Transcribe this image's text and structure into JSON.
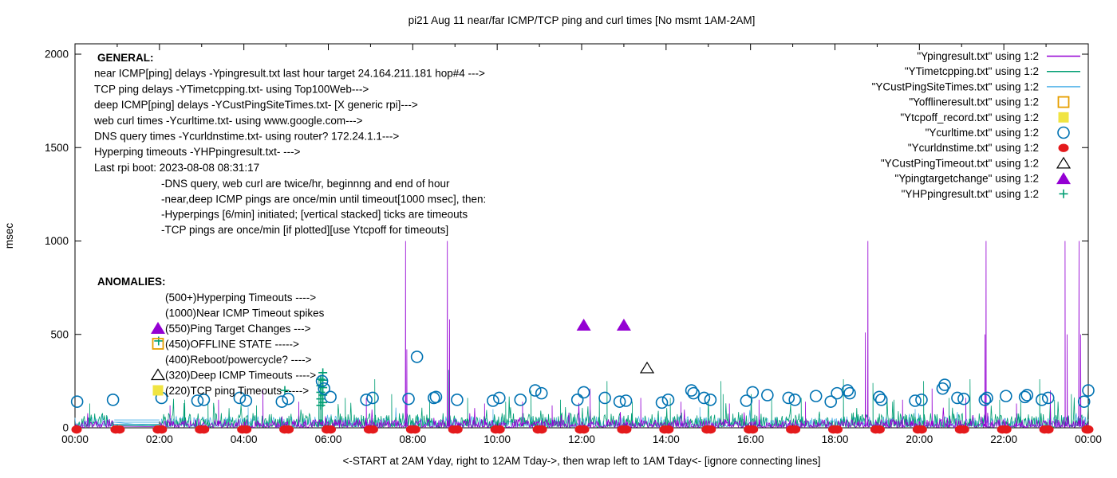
{
  "page": {
    "title": "pi21 Aug 11  near/far ICMP/TCP ping and curl times [No msmt 1AM-2AM]"
  },
  "chart_data": {
    "type": "line+scatter",
    "title": "pi21 Aug 11  near/far ICMP/TCP ping and curl times [No msmt 1AM-2AM]",
    "xlabel": "<-START at 2AM Yday, right to 12AM Tday->, then wrap left to 1AM Tday<- [ignore connecting lines]",
    "ylabel": "msec",
    "ylim": [
      0,
      2000
    ],
    "yticks": [
      0,
      500,
      1000,
      1500,
      2000
    ],
    "x_hours_range": [
      0,
      24
    ],
    "xtick_labels": [
      "00:00",
      "02:00",
      "04:00",
      "06:00",
      "08:00",
      "10:00",
      "12:00",
      "14:00",
      "16:00",
      "18:00",
      "20:00",
      "22:00",
      "00:00"
    ],
    "measurement_gap_hours": [
      0.93,
      2.0
    ],
    "grid": false,
    "legend_position": "top-right-inside",
    "legend": [
      {
        "label": "\"Ypingresult.txt\" using 1:2",
        "sample": "line",
        "color": "#9400d3"
      },
      {
        "label": "\"YTimetcpping.txt\" using 1:2",
        "sample": "line",
        "color": "#009e73"
      },
      {
        "label": "\"YCustPingSiteTimes.txt\" using 1:2",
        "sample": "line",
        "color": "#56b4e9"
      },
      {
        "label": "\"Yofflineresult.txt\" using 1:2",
        "sample": "open-square",
        "color": "#e69f00"
      },
      {
        "label": "\"Ytcpoff_record.txt\" using 1:2",
        "sample": "filled-square",
        "color": "#f0e442"
      },
      {
        "label": "\"Ycurltime.txt\" using 1:2",
        "sample": "open-circle",
        "color": "#0072b2"
      },
      {
        "label": "\"Ycurldnstime.txt\" using 1:2",
        "sample": "filled-circle",
        "color": "#e41a1c"
      },
      {
        "label": "\"YCustPingTimeout.txt\" using 1:2",
        "sample": "open-triangle",
        "color": "#000000"
      },
      {
        "label": "\"Ypingtargetchange\" using 1:2",
        "sample": "filled-triangle",
        "color": "#9400d3"
      },
      {
        "label": "\"YHPpingresult.txt\" using 1:2",
        "sample": "plus",
        "color": "#009e73"
      }
    ],
    "series": {
      "near_icmp_ping": {
        "source": "Ypingresult.txt",
        "color": "#9400d3",
        "style": "noisy line with timeout impulses",
        "timeout_msec": 1000,
        "noise": {
          "base": 2,
          "amp": 45,
          "spike_p": 0.03,
          "spike_amp": 100,
          "seed": 101
        },
        "spikes": [
          [
            2.25,
            120
          ],
          [
            3.4,
            150
          ],
          [
            4.45,
            200
          ],
          [
            5.3,
            140
          ],
          [
            6.9,
            160
          ],
          [
            7.83,
            1000
          ],
          [
            7.86,
            420
          ],
          [
            8.82,
            1000
          ],
          [
            8.87,
            580
          ],
          [
            9.7,
            130
          ],
          [
            10.6,
            140
          ],
          [
            11.3,
            120
          ],
          [
            12.2,
            210
          ],
          [
            13.4,
            160
          ],
          [
            14.35,
            140
          ],
          [
            15.5,
            130
          ],
          [
            16.2,
            150
          ],
          [
            17.3,
            140
          ],
          [
            18.72,
            510
          ],
          [
            18.78,
            1000
          ],
          [
            19.6,
            150
          ],
          [
            20.3,
            210
          ],
          [
            21.1,
            160
          ],
          [
            21.55,
            500
          ],
          [
            21.58,
            1000
          ],
          [
            22.3,
            130
          ],
          [
            23.1,
            200
          ],
          [
            23.45,
            1000
          ],
          [
            23.5,
            500
          ],
          [
            23.78,
            1000
          ],
          [
            23.82,
            500
          ]
        ]
      },
      "tcp_ping": {
        "source": "YTimetcpping.txt",
        "color": "#009e73",
        "style": "noisy line",
        "noise": {
          "base": 4,
          "amp": 75,
          "spike_p": 0.05,
          "spike_amp": 110,
          "seed": 202
        },
        "spikes": [
          [
            0.35,
            130
          ],
          [
            2.6,
            150
          ],
          [
            3.15,
            140
          ],
          [
            4.3,
            120
          ],
          [
            5.78,
            280
          ],
          [
            5.82,
            240
          ],
          [
            5.86,
            300
          ],
          [
            6.4,
            160
          ],
          [
            7.1,
            260
          ],
          [
            7.5,
            180
          ],
          [
            8.4,
            150
          ],
          [
            8.85,
            310
          ],
          [
            9.3,
            160
          ],
          [
            10.2,
            140
          ],
          [
            10.8,
            200
          ],
          [
            11.5,
            150
          ],
          [
            12.42,
            170
          ],
          [
            12.6,
            250
          ],
          [
            13.2,
            140
          ],
          [
            14.1,
            160
          ],
          [
            15.3,
            250
          ],
          [
            15.35,
            180
          ],
          [
            16.5,
            150
          ],
          [
            17.2,
            160
          ],
          [
            18.2,
            260
          ],
          [
            18.9,
            240
          ],
          [
            19.4,
            150
          ],
          [
            20.1,
            250
          ],
          [
            20.7,
            160
          ],
          [
            21.2,
            260
          ],
          [
            21.9,
            150
          ],
          [
            22.4,
            140
          ],
          [
            22.85,
            260
          ],
          [
            23.2,
            150
          ],
          [
            23.6,
            180
          ]
        ]
      },
      "deep_icmp_ping": {
        "source": "YCustPingSiteTimes.txt",
        "color": "#56b4e9",
        "style": "noisy line",
        "noise": {
          "base": 6,
          "amp": 55,
          "spike_p": 0.02,
          "spike_amp": 60,
          "seed": 303
        },
        "spikes": [
          [
            4.1,
            110
          ],
          [
            9.9,
            100
          ],
          [
            14.8,
            110
          ],
          [
            19.9,
            100
          ]
        ]
      },
      "web_curl": {
        "source": "Ycurltime.txt",
        "color": "#0072b2",
        "marker": "open-circle",
        "points": [
          [
            0.05,
            140
          ],
          [
            0.9,
            150
          ],
          [
            2.05,
            160
          ],
          [
            2.9,
            145
          ],
          [
            3.05,
            150
          ],
          [
            3.9,
            160
          ],
          [
            4.05,
            145
          ],
          [
            4.9,
            140
          ],
          [
            5.05,
            155
          ],
          [
            5.85,
            250
          ],
          [
            5.9,
            210
          ],
          [
            6.05,
            165
          ],
          [
            6.9,
            150
          ],
          [
            7.05,
            160
          ],
          [
            7.9,
            155
          ],
          [
            8.1,
            380
          ],
          [
            8.5,
            160
          ],
          [
            8.55,
            165
          ],
          [
            9.05,
            150
          ],
          [
            9.9,
            145
          ],
          [
            10.05,
            160
          ],
          [
            10.55,
            150
          ],
          [
            10.9,
            200
          ],
          [
            11.05,
            185
          ],
          [
            11.9,
            150
          ],
          [
            12.05,
            190
          ],
          [
            12.55,
            160
          ],
          [
            12.9,
            140
          ],
          [
            13.05,
            145
          ],
          [
            13.9,
            135
          ],
          [
            14.05,
            150
          ],
          [
            14.6,
            200
          ],
          [
            14.65,
            185
          ],
          [
            14.9,
            160
          ],
          [
            15.05,
            150
          ],
          [
            15.9,
            145
          ],
          [
            16.05,
            190
          ],
          [
            16.4,
            175
          ],
          [
            16.9,
            160
          ],
          [
            17.05,
            150
          ],
          [
            17.55,
            170
          ],
          [
            17.9,
            140
          ],
          [
            18.05,
            185
          ],
          [
            18.3,
            200
          ],
          [
            18.35,
            185
          ],
          [
            19.05,
            165
          ],
          [
            19.1,
            150
          ],
          [
            19.9,
            145
          ],
          [
            20.05,
            150
          ],
          [
            20.55,
            210
          ],
          [
            20.6,
            230
          ],
          [
            20.9,
            160
          ],
          [
            21.05,
            155
          ],
          [
            21.55,
            150
          ],
          [
            21.6,
            160
          ],
          [
            22.05,
            170
          ],
          [
            22.5,
            165
          ],
          [
            22.55,
            175
          ],
          [
            22.9,
            150
          ],
          [
            23.05,
            160
          ],
          [
            23.9,
            140
          ],
          [
            24.0,
            200
          ]
        ]
      },
      "dns_query": {
        "source": "Ycurldnstime.txt",
        "color": "#e41a1c",
        "marker": "filled-circle",
        "cadence": "every hour 00:00-24:00",
        "typical_msec": 8
      },
      "deep_icmp_timeout": {
        "source": "YCustPingTimeout.txt",
        "color": "#000000",
        "marker": "open-triangle",
        "points": [
          [
            13.55,
            320
          ]
        ]
      },
      "ping_target_change": {
        "source": "Ypingtargetchange",
        "color": "#9400d3",
        "marker": "filled-triangle",
        "points": [
          [
            12.05,
            550
          ],
          [
            13.0,
            550
          ]
        ]
      },
      "hyperping": {
        "source": "YHPpingresult.txt",
        "color": "#009e73",
        "marker": "plus",
        "points": [
          [
            1.98,
            465
          ],
          [
            4.97,
            200
          ],
          [
            5.82,
            120
          ],
          [
            5.82,
            155
          ],
          [
            5.82,
            190
          ],
          [
            5.82,
            225
          ],
          [
            5.82,
            260
          ],
          [
            5.87,
            135
          ],
          [
            5.87,
            175
          ],
          [
            5.87,
            215
          ],
          [
            5.87,
            255
          ],
          [
            5.87,
            295
          ]
        ]
      },
      "gap_connecting_lines": {
        "from_hour": 0.93,
        "to_hour": 2.0,
        "levels": [
          {
            "color": "#009e73",
            "msec": 12
          },
          {
            "color": "#56b4e9",
            "msec": 18
          },
          {
            "color": "#56b4e9",
            "msec": 30
          },
          {
            "color": "#56b4e9",
            "msec": 42
          }
        ]
      }
    },
    "annotations": {
      "general": {
        "heading": "GENERAL:",
        "lines": [
          "near ICMP[ping] delays -Ypingresult.txt last hour target 24.164.211.181 hop#4 --->",
          "TCP ping delays -YTimetcpping.txt- using Top100Web--->",
          "deep ICMP[ping] delays -YCustPingSiteTimes.txt- [X generic rpi]--->",
          "web curl times -Ycurltime.txt- using www.google.com--->",
          "DNS query times -Ycurldnstime.txt- using router? 172.24.1.1--->",
          "Hyperping timeouts -YHPpingresult.txt- --->",
          "Last rpi boot: 2023-08-08 08:31:17"
        ],
        "notes": [
          "-DNS query, web curl are twice/hr, beginnng and end of hour",
          "-near,deep ICMP pings are once/min until timeout[1000 msec], then:",
          " -Hyperpings [6/min] initiated; [vertical stacked] ticks are timeouts",
          "-TCP pings are once/min [if plotted][use Ytcpoff for timeouts]"
        ]
      },
      "anomalies": {
        "heading": "ANOMALIES:",
        "items": [
          {
            "text": "(500+)Hyperping Timeouts ---->",
            "marker": null
          },
          {
            "text": "(1000)Near ICMP Timeout spikes",
            "marker": null
          },
          {
            "text": "(550)Ping Target Changes --->",
            "marker": "filled-triangle"
          },
          {
            "text": "(450)OFFLINE STATE ----->",
            "marker": "open-square"
          },
          {
            "text": "(400)Reboot/powercycle? ---->",
            "marker": null
          },
          {
            "text": "(320)Deep ICMP Timeouts ---->",
            "marker": "open-triangle"
          },
          {
            "text": "(220)TCP ping Timeouts ----->",
            "marker": "filled-square"
          }
        ]
      }
    },
    "marker_colors": {
      "open-square": "#e69f00",
      "filled-square": "#f0e442",
      "open-circle": "#0072b2",
      "filled-circle": "#e41a1c",
      "open-triangle": "#000000",
      "filled-triangle": "#9400d3",
      "plus": "#009e73"
    }
  }
}
